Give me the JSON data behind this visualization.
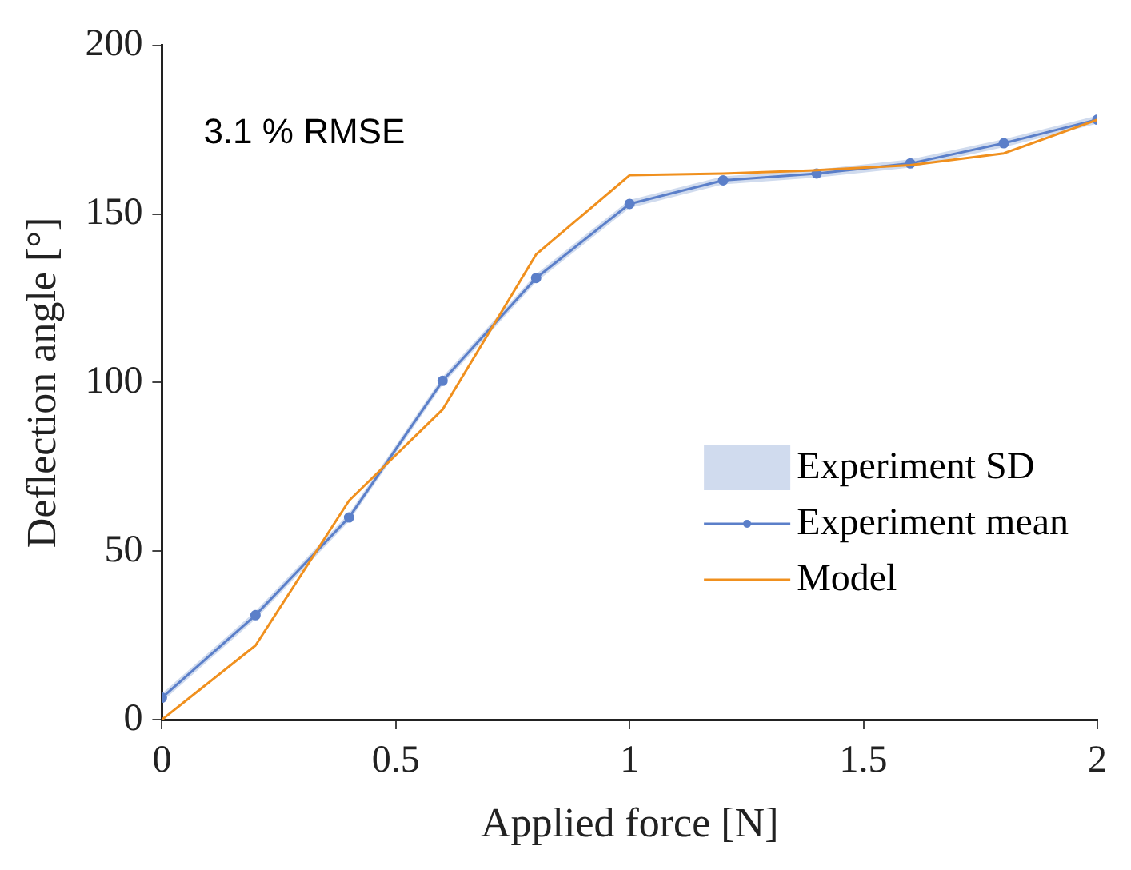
{
  "chart_data": {
    "type": "line",
    "xlabel": "Applied force [N]",
    "ylabel": "Deflection angle [°]",
    "annotations": [
      "3.1 % RMSE"
    ],
    "x": [
      0,
      0.2,
      0.4,
      0.6,
      0.8,
      1,
      1.2,
      1.4,
      1.6,
      1.8,
      2
    ],
    "series": [
      {
        "name": "Experiment SD",
        "type": "area",
        "color": "#d0dbee",
        "values": [
          null,
          null,
          null,
          null,
          null,
          null,
          null,
          null,
          null,
          null,
          null
        ],
        "lower": [
          5.3,
          29.8,
          58.8,
          99.3,
          129.8,
          151.8,
          158.8,
          160.8,
          163.8,
          169.8,
          176.8
        ],
        "upper": [
          7.7,
          32.2,
          61.2,
          101.7,
          132.2,
          154.2,
          161.2,
          163.2,
          166.2,
          172.2,
          179.2
        ]
      },
      {
        "name": "Experiment mean",
        "type": "line",
        "color": "#5b7fc9",
        "marker": "circle",
        "values": [
          6.5,
          31,
          60,
          100.5,
          131,
          153,
          160,
          162,
          165,
          171,
          178
        ]
      },
      {
        "name": "Model",
        "color": "#f0901e",
        "marker": "none",
        "values": [
          0,
          22,
          65,
          92,
          138,
          161.5,
          162,
          163,
          164.5,
          168,
          178
        ]
      }
    ],
    "xlim": [
      0,
      2
    ],
    "xticks": [
      0,
      0.5,
      1,
      1.5,
      2
    ],
    "ylim": [
      0,
      200
    ],
    "yticks": [
      0,
      50,
      100,
      150,
      200
    ],
    "grid": false,
    "legend": "bottom right"
  }
}
